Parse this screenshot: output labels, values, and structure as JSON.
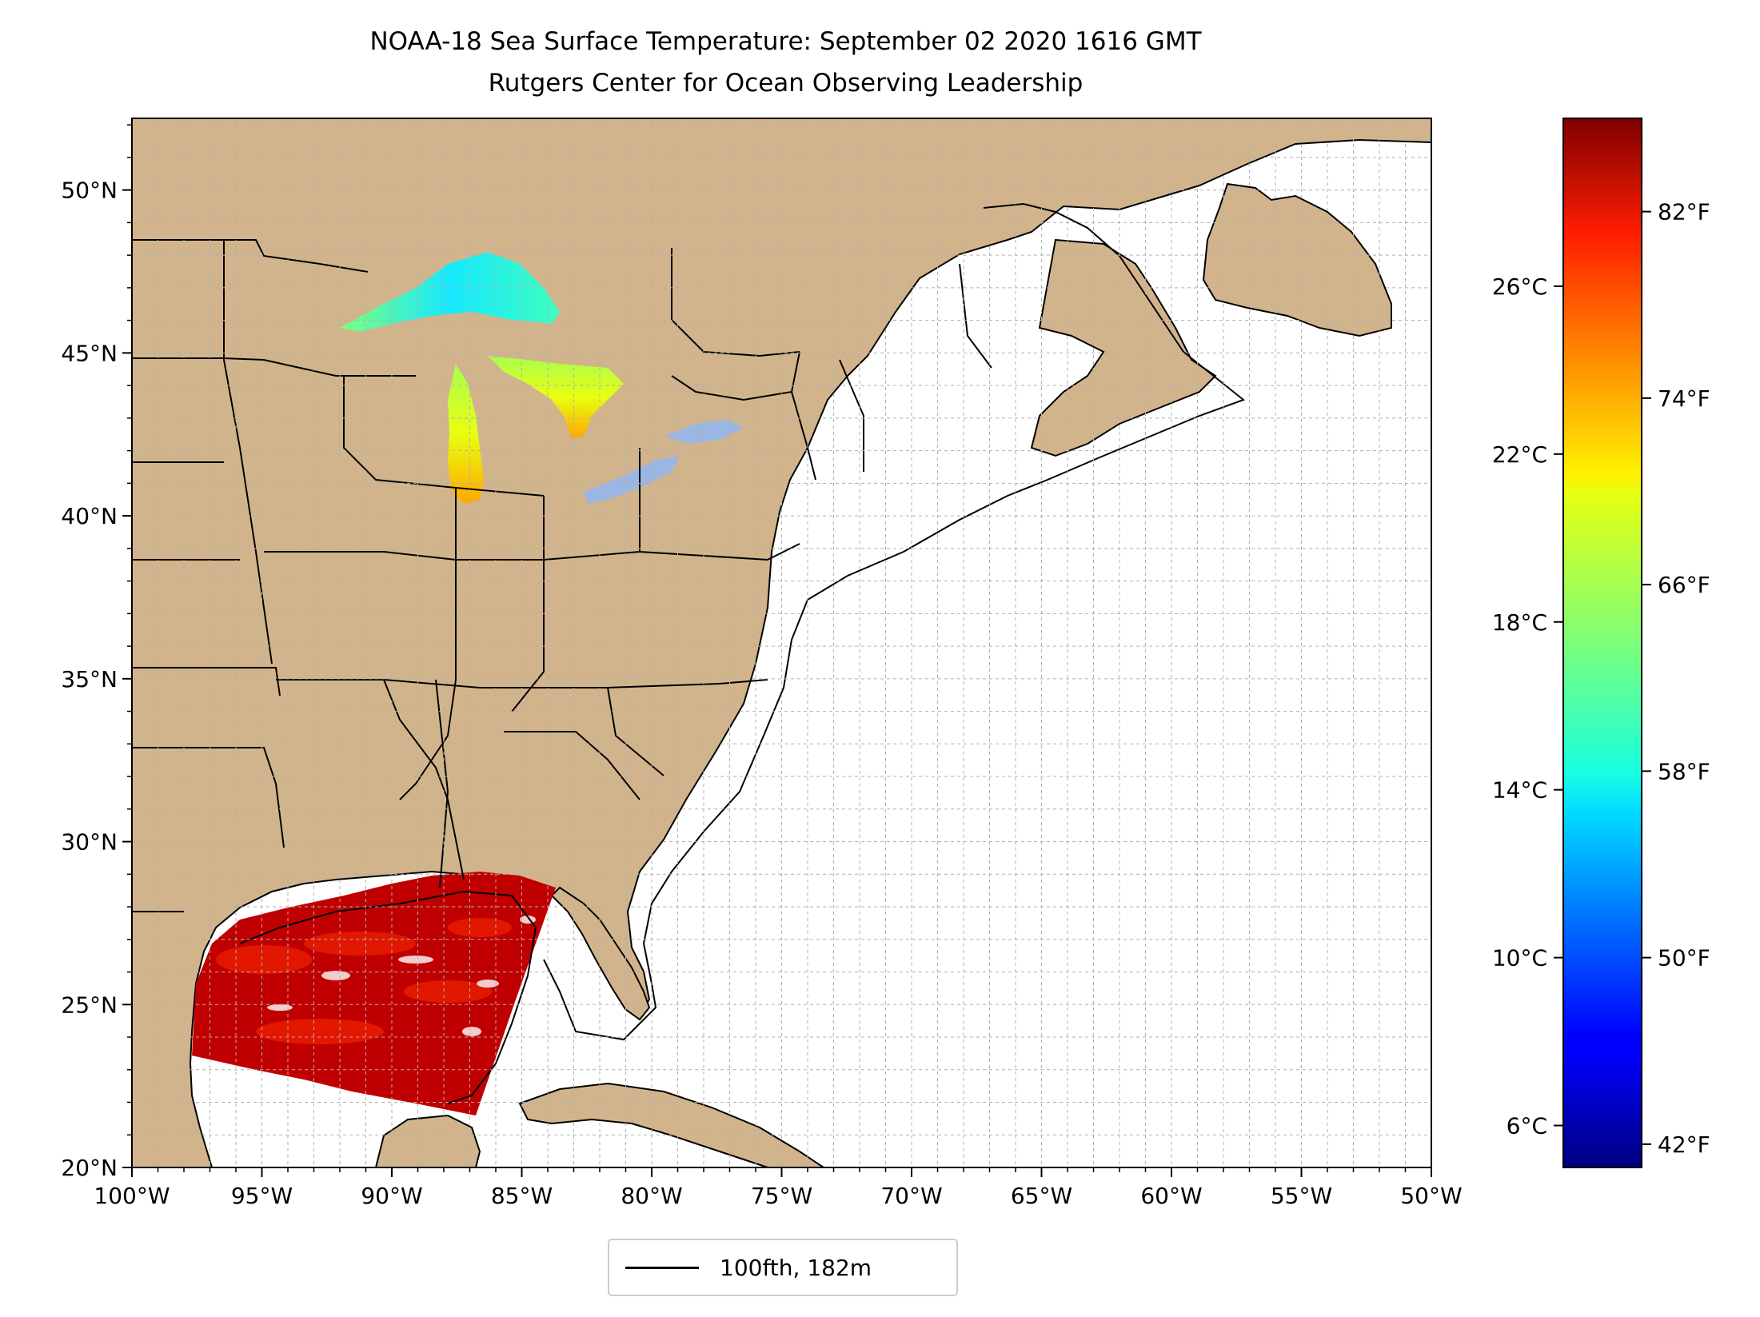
{
  "title": {
    "line1": "NOAA-18 Sea Surface Temperature: September 02 2020 1616 GMT",
    "line2": "Rutgers Center for Ocean Observing Leadership"
  },
  "legend": {
    "label": "100fth, 182m"
  },
  "colors": {
    "land": "#d2b48c",
    "inland_water": "#9ab7e3",
    "ocean": "#ffffff",
    "grid": "#b0b0b0"
  },
  "chart_data": {
    "type": "heatmap",
    "lon_range": [
      -100,
      -50
    ],
    "lat_range": [
      20,
      52.2
    ],
    "lon_ticks": [
      -100,
      -95,
      -90,
      -85,
      -80,
      -75,
      -70,
      -65,
      -60,
      -55,
      -50
    ],
    "lon_tick_labels": [
      "100°W",
      "95°W",
      "90°W",
      "85°W",
      "80°W",
      "75°W",
      "70°W",
      "65°W",
      "60°W",
      "55°W",
      "50°W"
    ],
    "lat_ticks": [
      20,
      25,
      30,
      35,
      40,
      45,
      50
    ],
    "lat_tick_labels": [
      "20°N",
      "25°N",
      "30°N",
      "35°N",
      "40°N",
      "45°N",
      "50°N"
    ],
    "grid": true,
    "colorbar": {
      "colormap": "jet",
      "range_c": [
        5,
        30
      ],
      "celsius_ticks": [
        6,
        10,
        14,
        18,
        22,
        26
      ],
      "celsius_labels": [
        "6°C",
        "10°C",
        "14°C",
        "18°C",
        "22°C",
        "26°C"
      ],
      "fahrenheit_ticks": [
        42,
        50,
        58,
        66,
        74,
        82
      ],
      "fahrenheit_labels": [
        "42°F",
        "50°F",
        "58°F",
        "66°F",
        "74°F",
        "82°F"
      ]
    },
    "legend_entries": [
      "100fth, 182m"
    ]
  }
}
